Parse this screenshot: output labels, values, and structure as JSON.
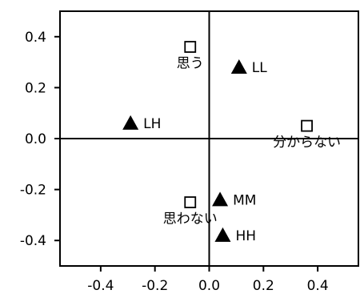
{
  "chart_data": {
    "type": "scatter",
    "title": "",
    "xlabel": "",
    "ylabel": "",
    "xlim": [
      -0.55,
      0.55
    ],
    "ylim": [
      -0.5,
      0.5
    ],
    "x_ticks": [
      -0.4,
      -0.2,
      0.0,
      0.2,
      0.4
    ],
    "x_tick_labels": [
      "-0.4",
      "-0.2",
      "0.0",
      "0.2",
      "0.4"
    ],
    "y_ticks": [
      0.4,
      0.2,
      0.0,
      -0.2,
      -0.4
    ],
    "y_tick_labels": [
      "0.4",
      "0.2",
      "0.0",
      "-0.2",
      "-0.4"
    ],
    "reference_lines": {
      "x": 0,
      "y": 0
    },
    "grid": false,
    "legend": "none",
    "series": [
      {
        "marker": "open-square",
        "points": [
          {
            "label": "思う",
            "x": -0.07,
            "y": 0.36,
            "label_pos": "below"
          },
          {
            "label": "分からない",
            "x": 0.36,
            "y": 0.05,
            "label_pos": "below"
          },
          {
            "label": "思わない",
            "x": -0.07,
            "y": -0.25,
            "label_pos": "below"
          }
        ]
      },
      {
        "marker": "filled-triangle",
        "points": [
          {
            "label": "LL",
            "x": 0.11,
            "y": 0.28,
            "label_pos": "right"
          },
          {
            "label": "LH",
            "x": -0.29,
            "y": 0.06,
            "label_pos": "right"
          },
          {
            "label": "MM",
            "x": 0.04,
            "y": -0.24,
            "label_pos": "right"
          },
          {
            "label": "HH",
            "x": 0.05,
            "y": -0.38,
            "label_pos": "right"
          }
        ]
      }
    ]
  }
}
